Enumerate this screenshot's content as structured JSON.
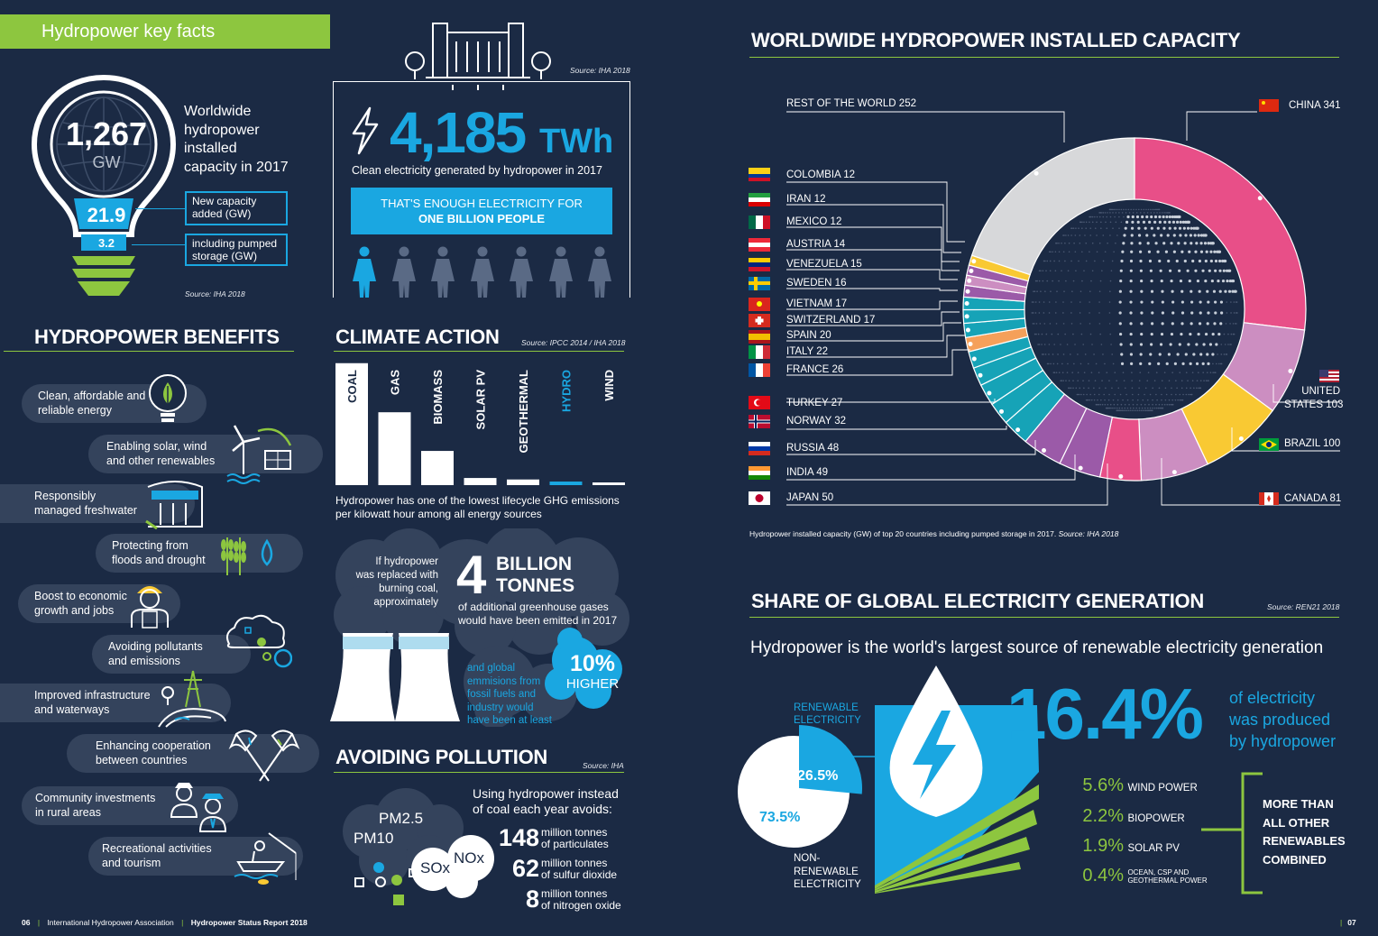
{
  "key_facts": {
    "header": "Hydropower key facts",
    "capacity_value": "1,267",
    "capacity_unit": "GW",
    "capacity_desc": [
      "Worldwide",
      "hydropower",
      "installed",
      "capacity in 2017"
    ],
    "new_capacity_value": "21.9",
    "new_capacity_label": [
      "New capacity",
      "added (GW)"
    ],
    "pumped_value": "3.2",
    "pumped_label": [
      "including pumped",
      "storage (GW)"
    ],
    "source": "Source: IHA 2018"
  },
  "electricity": {
    "source": "Source: IHA 2018",
    "value": "4,185",
    "unit": "TWh",
    "desc": "Clean electricity generated by hydropower in 2017",
    "banner_line1": "THAT'S ENOUGH ELECTRICITY FOR",
    "banner_line2": "ONE BILLION PEOPLE",
    "people_highlighted": 1,
    "people_total": 7
  },
  "benefits": {
    "title": "HYDROPOWER BENEFITS",
    "items": [
      [
        "Clean, affordable and",
        "reliable energy"
      ],
      [
        "Enabling solar, wind",
        "and other renewables"
      ],
      [
        "Responsibly",
        "managed freshwater"
      ],
      [
        "Protecting from",
        "floods and drought"
      ],
      [
        "Boost to economic",
        "growth and jobs"
      ],
      [
        "Avoiding pollutants",
        "and emissions"
      ],
      [
        "Improved infrastructure",
        "and waterways"
      ],
      [
        "Enhancing cooperation",
        "between countries"
      ],
      [
        "Community investments",
        "in rural areas"
      ],
      [
        "Recreational activities",
        "and tourism"
      ]
    ]
  },
  "climate": {
    "title": "CLIMATE ACTION",
    "source": "Source: IPCC 2014 / IHA 2018",
    "caption": [
      "Hydropower has one of the lowest lifecycle GHG emissions",
      "per kilowatt hour among all energy sources"
    ],
    "replaced_text": [
      "If hydropower",
      "was replaced with",
      "burning coal,",
      "approximately"
    ],
    "big_number": "4",
    "big_unit": [
      "BILLION",
      "TONNES"
    ],
    "big_desc": [
      "of additional greenhouse gases",
      "would have been emitted in 2017"
    ],
    "global_text": [
      "and global",
      "emmisions from",
      "fossil fuels and",
      "industry would",
      "have been at least"
    ],
    "higher_value": "10%",
    "higher_label": "HIGHER"
  },
  "chart_data": [
    {
      "type": "bar",
      "categories": [
        "COAL",
        "GAS",
        "BIOMASS",
        "SOLAR PV",
        "GEOTHERMAL",
        "HYDRO",
        "WIND"
      ],
      "values": [
        820,
        490,
        230,
        48,
        38,
        24,
        12
      ],
      "highlight": "HYDRO",
      "accent": "#1aa7e1"
    },
    {
      "type": "pie",
      "title": "WORLDWIDE HYDROPOWER INSTALLED CAPACITY",
      "caption": "Hydropower installed capacity (GW) of top 20 countries including pumped storage in 2017.",
      "caption_source": "Source: IHA 2018",
      "slices": [
        {
          "label": "CHINA",
          "value": 341,
          "color": "#e84f88"
        },
        {
          "label": "UNITED STATES",
          "value": 103,
          "color": "#cc8ec1"
        },
        {
          "label": "BRAZIL",
          "value": 100,
          "color": "#f9c933"
        },
        {
          "label": "CANADA",
          "value": 81,
          "color": "#cc8ec1"
        },
        {
          "label": "INDIA",
          "value": 49,
          "color": "#e84f88"
        },
        {
          "label": "JAPAN",
          "value": 50,
          "color": "#9b5aa8"
        },
        {
          "label": "RUSSIA",
          "value": 48,
          "color": "#9b5aa8"
        },
        {
          "label": "NORWAY",
          "value": 32,
          "color": "#16a3b7"
        },
        {
          "label": "TURKEY",
          "value": 27,
          "color": "#16a3b7"
        },
        {
          "label": "FRANCE",
          "value": 26,
          "color": "#16a3b7"
        },
        {
          "label": "ITALY",
          "value": 22,
          "color": "#16a3b7"
        },
        {
          "label": "SPAIN",
          "value": 20,
          "color": "#16a3b7"
        },
        {
          "label": "SWITZERLAND",
          "value": 17,
          "color": "#f5a05a"
        },
        {
          "label": "VIETNAM",
          "value": 17,
          "color": "#16a3b7"
        },
        {
          "label": "SWEDEN",
          "value": 16,
          "color": "#16a3b7"
        },
        {
          "label": "VENEZUELA",
          "value": 15,
          "color": "#16a3b7"
        },
        {
          "label": "AUSTRIA",
          "value": 14,
          "color": "#9b5aa8"
        },
        {
          "label": "MEXICO",
          "value": 12,
          "color": "#cc8ec1"
        },
        {
          "label": "IRAN",
          "value": 12,
          "color": "#9b5aa8"
        },
        {
          "label": "COLOMBIA",
          "value": 12,
          "color": "#f9c933"
        },
        {
          "label": "REST OF THE WORLD",
          "value": 252,
          "color": "#d7d8da"
        }
      ]
    },
    {
      "type": "pie",
      "slices": [
        {
          "label": "RENEWABLE ELECTRICITY",
          "value": 26.5
        },
        {
          "label": "NON-RENEWABLE ELECTRICITY",
          "value": 73.5
        }
      ]
    }
  ],
  "capacity_labels": {
    "rest": "REST OF THE WORLD 252",
    "china": "CHINA 341",
    "us": [
      "UNITED",
      "STATES 103"
    ],
    "brazil": "BRAZIL 100",
    "canada": "CANADA 81",
    "left": [
      "COLOMBIA 12",
      "IRAN 12",
      "MEXICO 12",
      "AUSTRIA 14",
      "VENEZUELA 15",
      "SWEDEN 16",
      "VIETNAM 17",
      "SWITZERLAND 17",
      "SPAIN 20",
      "ITALY 22",
      "FRANCE 26",
      "TURKEY 27",
      "NORWAY 32",
      "RUSSIA 48",
      "INDIA 49",
      "JAPAN 50"
    ]
  },
  "pollution": {
    "title": "AVOIDING POLLUTION",
    "source": "Source: IHA",
    "intro": [
      "Using hydropower instead",
      "of coal each year avoids:"
    ],
    "rows": [
      {
        "value": "148",
        "label": [
          "million tonnes",
          "of particulates"
        ]
      },
      {
        "value": "62",
        "label": [
          "million tonnes",
          "of sulfur dioxide"
        ]
      },
      {
        "value": "8",
        "label": [
          "million tonnes",
          "of nitrogen oxide"
        ]
      }
    ],
    "clouds": [
      "PM2.5",
      "PM10",
      "SOx",
      "NOx"
    ]
  },
  "share": {
    "title": "SHARE OF GLOBAL ELECTRICITY GENERATION",
    "source": "Source: REN21 2018",
    "subtitle": "Hydropower is the world's largest source of renewable electricity generation",
    "renewable_label": [
      "RENEWABLE",
      "ELECTRICITY"
    ],
    "renewable_value": "26.5%",
    "nonrenewable_value": "73.5%",
    "nonrenewable_label": [
      "NON-",
      "RENEWABLE",
      "ELECTRICITY"
    ],
    "hydro_value": "16.4%",
    "hydro_desc": [
      "of electricity",
      "was produced",
      "by hydropower"
    ],
    "others": [
      {
        "value": "5.6%",
        "label": [
          "WIND POWER"
        ]
      },
      {
        "value": "2.2%",
        "label": [
          "BIOPOWER"
        ]
      },
      {
        "value": "1.9%",
        "label": [
          "SOLAR PV"
        ]
      },
      {
        "value": "0.4%",
        "label": [
          "OCEAN, CSP AND",
          "GEOTHERMAL POWER"
        ]
      }
    ],
    "bracket_text": [
      "MORE THAN",
      "ALL OTHER",
      "RENEWABLES",
      "COMBINED"
    ]
  },
  "footer": {
    "page_left": "06",
    "org": "International Hydropower Association",
    "report": "Hydropower Status Report 2018",
    "page_right": "07"
  },
  "colors": {
    "background": "#1b2a44",
    "accent_blue": "#1aa7e1",
    "accent_green": "#8dc63f",
    "pill": "#34435c"
  }
}
